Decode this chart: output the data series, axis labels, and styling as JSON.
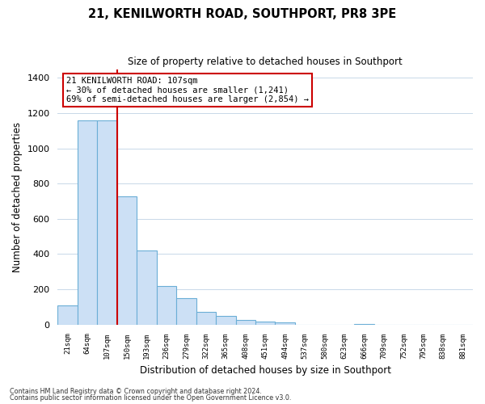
{
  "title": "21, KENILWORTH ROAD, SOUTHPORT, PR8 3PE",
  "subtitle": "Size of property relative to detached houses in Southport",
  "xlabel": "Distribution of detached houses by size in Southport",
  "ylabel": "Number of detached properties",
  "bin_labels": [
    "21sqm",
    "64sqm",
    "107sqm",
    "150sqm",
    "193sqm",
    "236sqm",
    "279sqm",
    "322sqm",
    "365sqm",
    "408sqm",
    "451sqm",
    "494sqm",
    "537sqm",
    "580sqm",
    "623sqm",
    "666sqm",
    "709sqm",
    "752sqm",
    "795sqm",
    "838sqm",
    "881sqm"
  ],
  "bar_values": [
    107,
    1160,
    1160,
    730,
    420,
    220,
    148,
    72,
    48,
    28,
    16,
    13,
    0,
    0,
    0,
    5,
    0,
    0,
    0,
    0,
    0
  ],
  "bar_fill_color": "#cce0f5",
  "bar_edge_color": "#6baed6",
  "vline_x_index": 2,
  "vline_color": "#cc0000",
  "annotation_title": "21 KENILWORTH ROAD: 107sqm",
  "annotation_line1": "← 30% of detached houses are smaller (1,241)",
  "annotation_line2": "69% of semi-detached houses are larger (2,854) →",
  "annotation_box_facecolor": "#ffffff",
  "annotation_box_edgecolor": "#cc0000",
  "ylim": [
    0,
    1450
  ],
  "yticks": [
    0,
    200,
    400,
    600,
    800,
    1000,
    1200,
    1400
  ],
  "footnote1": "Contains HM Land Registry data © Crown copyright and database right 2024.",
  "footnote2": "Contains public sector information licensed under the Open Government Licence v3.0.",
  "bg_color": "#ffffff",
  "grid_color": "#c8d8e8"
}
